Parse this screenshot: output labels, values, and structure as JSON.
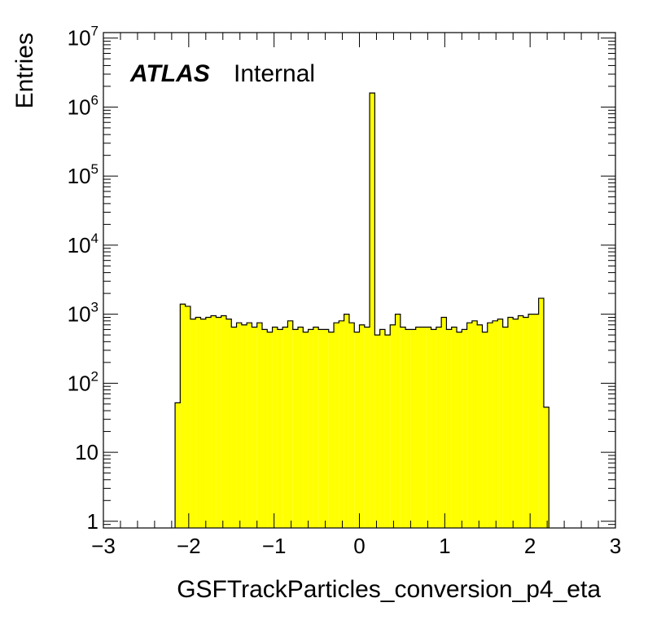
{
  "chart_data": {
    "type": "bar",
    "xlabel": "GSFTrackParticles_conversion_p4_eta",
    "ylabel": "Entries",
    "xlim": [
      -3,
      3
    ],
    "ylim": [
      0.8,
      12000000
    ],
    "log_y": true,
    "grid": false,
    "legend": "none",
    "annotation": {
      "experiment": "ATLAS",
      "status": "Internal",
      "placement": "top-left"
    },
    "x_ticks": [
      {
        "value": -3,
        "label": "−3"
      },
      {
        "value": -2,
        "label": "−2"
      },
      {
        "value": -1,
        "label": "−1"
      },
      {
        "value": 0,
        "label": "0"
      },
      {
        "value": 1,
        "label": "1"
      },
      {
        "value": 2,
        "label": "2"
      },
      {
        "value": 3,
        "label": "3"
      }
    ],
    "y_ticks": [
      {
        "value": 1,
        "base": "1",
        "exp": ""
      },
      {
        "value": 10,
        "base": "10",
        "exp": ""
      },
      {
        "value": 100,
        "base": "10",
        "exp": "2"
      },
      {
        "value": 1000,
        "base": "10",
        "exp": "3"
      },
      {
        "value": 10000,
        "base": "10",
        "exp": "4"
      },
      {
        "value": 100000,
        "base": "10",
        "exp": "5"
      },
      {
        "value": 1000000,
        "base": "10",
        "exp": "6"
      },
      {
        "value": 10000000,
        "base": "10",
        "exp": "7"
      }
    ],
    "bin_width": 0.06,
    "bin_lo": [
      -2.16,
      -2.1,
      -2.04,
      -1.98,
      -1.92,
      -1.86,
      -1.8,
      -1.74,
      -1.68,
      -1.62,
      -1.56,
      -1.5,
      -1.44,
      -1.38,
      -1.32,
      -1.26,
      -1.2,
      -1.14,
      -1.08,
      -1.02,
      -0.96,
      -0.9,
      -0.84,
      -0.78,
      -0.72,
      -0.66,
      -0.6,
      -0.54,
      -0.48,
      -0.42,
      -0.36,
      -0.3,
      -0.24,
      -0.18,
      -0.12,
      -0.06,
      0.0,
      0.06,
      0.12,
      0.18,
      0.24,
      0.3,
      0.36,
      0.42,
      0.48,
      0.54,
      0.6,
      0.66,
      0.72,
      0.78,
      0.84,
      0.9,
      0.96,
      1.02,
      1.08,
      1.14,
      1.2,
      1.26,
      1.32,
      1.38,
      1.44,
      1.5,
      1.56,
      1.62,
      1.68,
      1.74,
      1.8,
      1.86,
      1.92,
      1.98,
      2.04,
      2.1,
      2.16
    ],
    "values": [
      52,
      1400,
      1300,
      850,
      900,
      850,
      900,
      950,
      900,
      950,
      850,
      650,
      750,
      700,
      750,
      650,
      750,
      600,
      550,
      650,
      600,
      650,
      800,
      600,
      650,
      550,
      600,
      650,
      600,
      600,
      550,
      750,
      800,
      1000,
      750,
      550,
      700,
      650,
      1600000,
      500,
      600,
      500,
      700,
      1000,
      650,
      600,
      600,
      650,
      650,
      650,
      600,
      650,
      900,
      600,
      650,
      550,
      600,
      750,
      800,
      700,
      550,
      750,
      800,
      850,
      650,
      900,
      850,
      950,
      900,
      1000,
      1000,
      1700,
      45
    ]
  }
}
